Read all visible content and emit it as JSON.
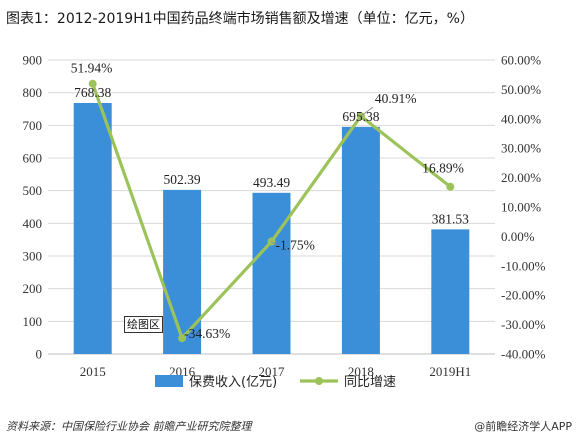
{
  "title": "图表1：2012-2019H1中国药品终端市场销售额及增速（单位：亿元，%）",
  "plot_area_tag": "绘图区",
  "source": "资料来源：中国保险行业协会 前瞻产业研究院整理",
  "app_credit": "@前瞻经济学人APP",
  "colors": {
    "bar": "#3b8fd9",
    "line": "#9cc35a",
    "grid": "#d9d9d9"
  },
  "chart_data": {
    "type": "bar",
    "categories": [
      "2015",
      "2016",
      "2017",
      "2018",
      "2019H1"
    ],
    "series": [
      {
        "name": "保费收入(亿元)",
        "type": "bar",
        "axis": "left",
        "values": [
          768.38,
          502.39,
          493.49,
          695.38,
          381.53
        ],
        "labels": [
          "768.38",
          "502.39",
          "493.49",
          "695.38",
          "381.53"
        ]
      },
      {
        "name": "同比增速",
        "type": "line",
        "axis": "right",
        "values": [
          51.94,
          -34.63,
          -1.75,
          40.91,
          16.89
        ],
        "labels": [
          "51.94%",
          "-34.63%",
          "-1.75%",
          "40.91%",
          "16.89%"
        ]
      }
    ],
    "y_left": {
      "min": 0,
      "max": 900,
      "step": 100,
      "ticks": [
        "0",
        "100",
        "200",
        "300",
        "400",
        "500",
        "600",
        "700",
        "800",
        "900"
      ]
    },
    "y_right": {
      "min": -40,
      "max": 60,
      "step": 10,
      "ticks": [
        "-40.00%",
        "-30.00%",
        "-20.00%",
        "-10.00%",
        "0.00%",
        "10.00%",
        "20.00%",
        "30.00%",
        "40.00%",
        "50.00%",
        "60.00%"
      ]
    },
    "grid": true,
    "legend_position": "bottom"
  }
}
